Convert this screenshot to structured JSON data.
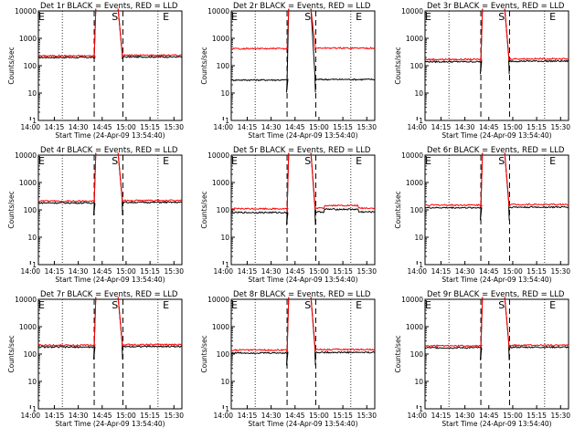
{
  "chart_data": [
    {
      "type": "line",
      "title": "Det 1r BLACK = Events, RED = LLD",
      "level_events": 200,
      "level_lld": 230,
      "dip": "up",
      "bump": "none"
    },
    {
      "type": "line",
      "title": "Det 2r BLACK = Events, RED = LLD",
      "level_events": 30,
      "level_lld": 420,
      "dip": "down",
      "bump": "none"
    },
    {
      "type": "line",
      "title": "Det 3r BLACK = Events, RED = LLD",
      "level_events": 140,
      "level_lld": 170,
      "dip": "down",
      "bump": "none"
    },
    {
      "type": "line",
      "title": "Det 4r BLACK = Events, RED = LLD",
      "level_events": 180,
      "level_lld": 210,
      "dip": "down",
      "bump": "none"
    },
    {
      "type": "line",
      "title": "Det 5r BLACK = Events, RED = LLD",
      "level_events": 80,
      "level_lld": 110,
      "dip": "down",
      "bump": "mid"
    },
    {
      "type": "line",
      "title": "Det 6r BLACK = Events, RED = LLD",
      "level_events": 120,
      "level_lld": 150,
      "dip": "down",
      "bump": "none"
    },
    {
      "type": "line",
      "title": "Det 7r BLACK = Events, RED = LLD",
      "level_events": 180,
      "level_lld": 210,
      "dip": "down",
      "bump": "none"
    },
    {
      "type": "line",
      "title": "Det 8r BLACK = Events, RED = LLD",
      "level_events": 110,
      "level_lld": 140,
      "dip": "down",
      "bump": "none"
    },
    {
      "type": "line",
      "title": "Det 9r BLACK = Events, RED = LLD",
      "level_events": 170,
      "level_lld": 200,
      "dip": "down",
      "bump": "none"
    }
  ],
  "shared": {
    "xlabel": "Start Time (24-Apr-09 13:54:40)",
    "ylabel": "Counts/sec",
    "x_ticks": [
      "14:00",
      "14:15",
      "14:30",
      "14:45",
      "15:00",
      "15:15",
      "15:30"
    ],
    "x_range_min": [
      5,
      95
    ],
    "y_ticks": [
      "1",
      "10",
      "100",
      "1000",
      "10000"
    ],
    "ylim": [
      1,
      10000
    ],
    "yscale": "log",
    "markers": [
      "E",
      "S",
      "E"
    ],
    "markers_min": [
      7,
      53,
      85
    ],
    "dashed_min": [
      40,
      58
    ],
    "dotted_min": [
      20,
      80
    ],
    "event_window_min": [
      40,
      58
    ],
    "colors": {
      "events": "#000000",
      "lld": "#ff0000"
    }
  }
}
